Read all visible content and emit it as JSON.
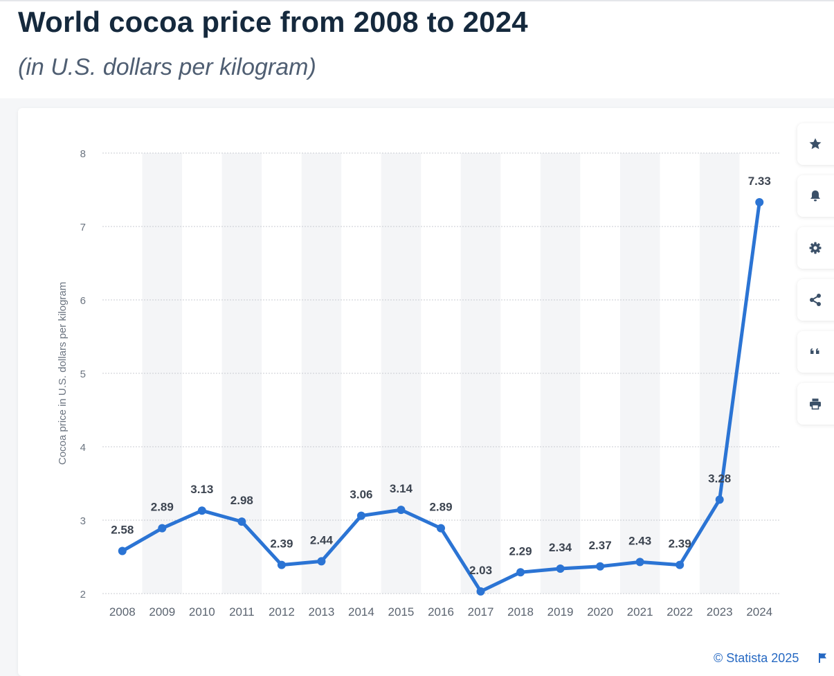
{
  "header": {
    "title": "World cocoa price from 2008 to 2024",
    "subtitle": "(in U.S. dollars per kilogram)"
  },
  "side_actions": [
    {
      "name": "favorite",
      "icon": "star-icon"
    },
    {
      "name": "notification",
      "icon": "bell-icon"
    },
    {
      "name": "settings",
      "icon": "gear-icon"
    },
    {
      "name": "share",
      "icon": "share-icon"
    },
    {
      "name": "cite",
      "icon": "quote-icon"
    },
    {
      "name": "print",
      "icon": "printer-icon"
    }
  ],
  "credit": "© Statista 2025",
  "colors": {
    "line": "#2b74d4",
    "title": "#15293d",
    "stripe": "#f4f5f7",
    "grid": "#c8cbd0",
    "icon": "#3b5068",
    "credit": "#2568c2"
  },
  "chart_data": {
    "type": "line",
    "title": "World cocoa price from 2008 to 2024",
    "subtitle": "(in U.S. dollars per kilogram)",
    "xlabel": "",
    "ylabel": "Cocoa price in U.S. dollars per kilogram",
    "categories": [
      "2008",
      "2009",
      "2010",
      "2011",
      "2012",
      "2013",
      "2014",
      "2015",
      "2016",
      "2017",
      "2018",
      "2019",
      "2020",
      "2021",
      "2022",
      "2023",
      "2024"
    ],
    "values": [
      2.58,
      2.89,
      3.13,
      2.98,
      2.39,
      2.44,
      3.06,
      3.14,
      2.89,
      2.03,
      2.29,
      2.34,
      2.37,
      2.43,
      2.39,
      3.28,
      7.33
    ],
    "value_labels": [
      "2.58",
      "2.89",
      "3.13",
      "2.98",
      "2.39",
      "2.44",
      "3.06",
      "3.14",
      "2.89",
      "2.03",
      "2.29",
      "2.34",
      "2.37",
      "2.43",
      "2.39",
      "3.28",
      "7.33"
    ],
    "ylim": [
      2,
      8
    ],
    "yticks": [
      "2",
      "3",
      "4",
      "5",
      "6",
      "7",
      "8"
    ],
    "grid": true,
    "legend": "none"
  }
}
